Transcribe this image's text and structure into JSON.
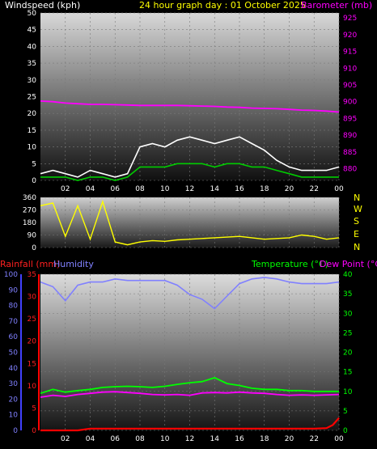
{
  "header": {
    "title": "24 hour graph day : 01 October 2025",
    "left_label": "Windspeed (kph)",
    "right_label": "Barometer (mb)",
    "rain_label": "Rainfall (mm)",
    "humidity_label": "Humidity",
    "temp_label": "Temperature (°C)",
    "dew_label": "Dew Point (°C)"
  },
  "colors": {
    "background": "#000000",
    "wind_gust": "#ffffff",
    "wind_avg": "#00cc00",
    "barometer": "#ff00ff",
    "direction": "#ffff00",
    "rain": "#ff0000",
    "humidity": "#8080ff",
    "temperature": "#00ff00",
    "dew_point": "#ff00ff",
    "title": "#ffff00"
  },
  "chart_data": [
    {
      "type": "line",
      "name": "wind-barometer",
      "x_ticks": [
        "02",
        "04",
        "06",
        "08",
        "10",
        "12",
        "14",
        "16",
        "18",
        "20",
        "22",
        "00"
      ],
      "y_left_ticks": [
        "0",
        "5",
        "10",
        "15",
        "20",
        "25",
        "30",
        "35",
        "40",
        "45",
        "50"
      ],
      "y_left_range": [
        0,
        50
      ],
      "y_right_ticks": [
        "880",
        "885",
        "890",
        "895",
        "900",
        "905",
        "910",
        "915",
        "920",
        "925"
      ],
      "y_right_range": [
        876.5,
        926.5
      ],
      "series": [
        {
          "key": "barometer",
          "x": [
            0,
            1,
            2,
            3,
            4,
            5,
            6,
            7,
            8,
            9,
            10,
            11,
            12,
            13,
            14,
            15,
            16,
            17,
            18,
            19,
            20,
            21,
            22,
            23,
            24
          ],
          "values": [
            900.2,
            900.0,
            899.6,
            899.4,
            899.2,
            899.2,
            899.1,
            899.0,
            898.9,
            898.9,
            898.9,
            898.9,
            898.8,
            898.7,
            898.6,
            898.4,
            898.3,
            898.1,
            898.0,
            897.9,
            897.7,
            897.5,
            897.4,
            897.2,
            896.9
          ]
        },
        {
          "key": "gust",
          "x": [
            0,
            1,
            2,
            3,
            4,
            5,
            6,
            7,
            8,
            9,
            10,
            11,
            12,
            13,
            14,
            15,
            16,
            17,
            18,
            19,
            20,
            21,
            22,
            23,
            24
          ],
          "values": [
            2,
            3,
            2,
            1,
            3,
            2,
            1,
            2,
            10,
            11,
            10,
            12,
            13,
            12,
            11,
            12,
            13,
            11,
            9,
            6,
            4,
            3,
            3,
            3,
            4
          ]
        },
        {
          "key": "average",
          "x": [
            0,
            1,
            2,
            3,
            4,
            5,
            6,
            7,
            8,
            9,
            10,
            11,
            12,
            13,
            14,
            15,
            16,
            17,
            18,
            19,
            20,
            21,
            22,
            23,
            24
          ],
          "values": [
            1,
            1,
            1,
            0,
            1,
            1,
            0,
            1,
            4,
            4,
            4,
            5,
            5,
            5,
            4,
            5,
            5,
            4,
            4,
            3,
            2,
            1,
            1,
            1,
            1
          ]
        }
      ]
    },
    {
      "type": "line",
      "name": "wind-direction",
      "y_ticks": [
        "0",
        "90",
        "180",
        "270",
        "360"
      ],
      "y_range": [
        0,
        360
      ],
      "direction_labels": [
        "N",
        "W",
        "S",
        "E",
        "N"
      ],
      "series": [
        {
          "key": "direction",
          "x": [
            0,
            1,
            2,
            3,
            4,
            5,
            6,
            7,
            8,
            9,
            10,
            11,
            12,
            13,
            14,
            15,
            16,
            17,
            18,
            19,
            20,
            21,
            22,
            23,
            24
          ],
          "values": [
            300,
            320,
            80,
            300,
            60,
            330,
            40,
            20,
            40,
            50,
            45,
            55,
            60,
            65,
            70,
            75,
            80,
            70,
            60,
            65,
            70,
            90,
            80,
            60,
            70
          ]
        }
      ]
    },
    {
      "type": "line",
      "name": "rain-humidity-temperature",
      "x_ticks": [
        "02",
        "04",
        "06",
        "08",
        "10",
        "12",
        "14",
        "16",
        "18",
        "20",
        "22",
        "00"
      ],
      "rain_ticks": [
        "0",
        "5",
        "10",
        "15",
        "20",
        "25",
        "30",
        "35"
      ],
      "rain_range": [
        0,
        35
      ],
      "humidity_ticks": [
        "0",
        "10",
        "20",
        "30",
        "40",
        "50",
        "60",
        "70",
        "80",
        "90",
        "100"
      ],
      "humidity_range": [
        0,
        100
      ],
      "temp_ticks": [
        "0",
        "5",
        "10",
        "15",
        "20",
        "25",
        "30",
        "35",
        "40"
      ],
      "temp_range": [
        0,
        40
      ],
      "series": [
        {
          "key": "humidity",
          "x": [
            0,
            1,
            2,
            3,
            4,
            5,
            6,
            7,
            8,
            9,
            10,
            11,
            12,
            13,
            14,
            15,
            16,
            17,
            18,
            19,
            20,
            21,
            22,
            23,
            24
          ],
          "values": [
            95,
            92,
            83,
            93,
            95,
            95,
            97,
            96,
            96,
            96,
            96,
            93,
            87,
            84,
            78,
            86,
            94,
            97,
            98,
            97,
            95,
            94,
            94,
            94,
            95
          ]
        },
        {
          "key": "temperature",
          "x": [
            0,
            1,
            2,
            3,
            4,
            5,
            6,
            7,
            8,
            9,
            10,
            11,
            12,
            13,
            14,
            15,
            16,
            17,
            18,
            19,
            20,
            21,
            22,
            23,
            24
          ],
          "values": [
            9.5,
            10.5,
            9.8,
            10.2,
            10.5,
            11.0,
            11.2,
            11.3,
            11.2,
            11.0,
            11.3,
            11.8,
            12.2,
            12.5,
            13.5,
            12.0,
            11.5,
            10.8,
            10.5,
            10.5,
            10.2,
            10.2,
            10.0,
            10.0,
            10.0
          ]
        },
        {
          "key": "dew_point",
          "x": [
            0,
            1,
            2,
            3,
            4,
            5,
            6,
            7,
            8,
            9,
            10,
            11,
            12,
            13,
            14,
            15,
            16,
            17,
            18,
            19,
            20,
            21,
            22,
            23,
            24
          ],
          "values": [
            8.5,
            9.0,
            8.7,
            9.2,
            9.5,
            9.8,
            9.9,
            9.7,
            9.5,
            9.2,
            9.1,
            9.2,
            9.0,
            9.6,
            9.7,
            9.6,
            9.8,
            9.6,
            9.5,
            9.2,
            9.0,
            9.1,
            9.0,
            9.1,
            9.2
          ]
        },
        {
          "key": "rain",
          "x": [
            0,
            1,
            2,
            3,
            4,
            5,
            6,
            7,
            8,
            9,
            10,
            11,
            12,
            13,
            14,
            15,
            16,
            17,
            18,
            19,
            20,
            21,
            22,
            23,
            23.5,
            24
          ],
          "values": [
            0,
            0,
            0,
            0,
            0.4,
            0.4,
            0.4,
            0.4,
            0.4,
            0.4,
            0.4,
            0.4,
            0.4,
            0.4,
            0.4,
            0.4,
            0.4,
            0.4,
            0.4,
            0.4,
            0.4,
            0.4,
            0.4,
            0.5,
            1.2,
            2.8
          ]
        }
      ]
    }
  ]
}
